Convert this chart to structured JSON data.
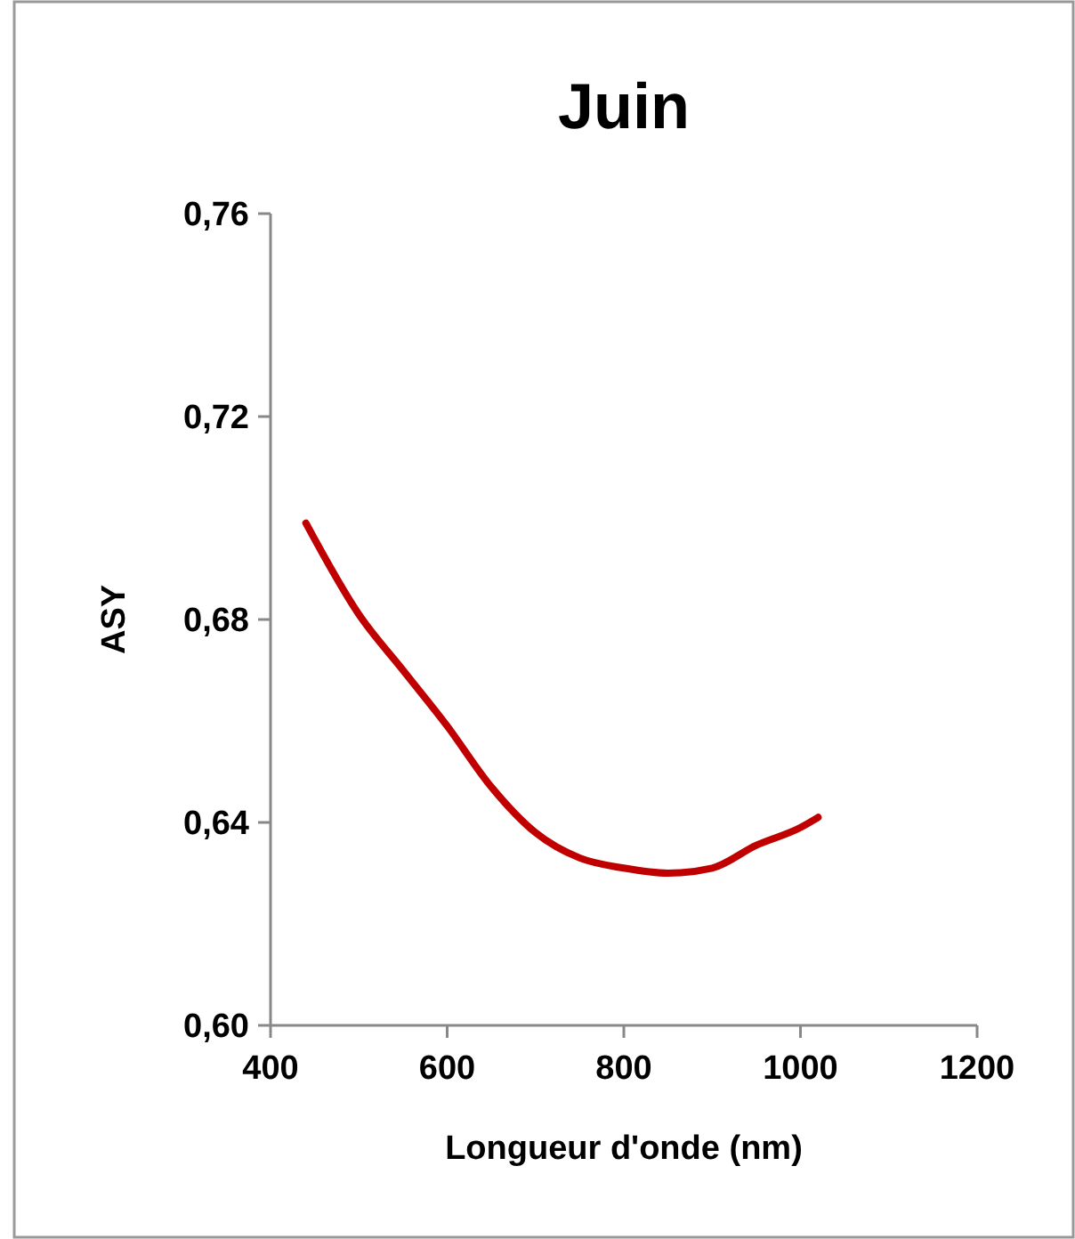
{
  "chart_data": {
    "type": "line",
    "title": "Juin",
    "xlabel": "Longueur d'onde (nm)",
    "ylabel": "ASY",
    "series": [
      {
        "color": "#c00000",
        "x": [
          440,
          500,
          550,
          600,
          650,
          700,
          750,
          800,
          850,
          900,
          950,
          1000,
          1020
        ],
        "values": [
          0.699,
          0.681,
          0.67,
          0.659,
          0.647,
          0.638,
          0.633,
          0.631,
          0.63,
          0.631,
          0.6355,
          0.639,
          0.641
        ]
      }
    ],
    "xlim": [
      400,
      1200
    ],
    "xticks": [
      400,
      600,
      800,
      1000,
      1200
    ],
    "ylim": [
      0.6,
      0.76
    ],
    "yticks": [
      {
        "value": 0.6,
        "label": "0,60"
      },
      {
        "value": 0.64,
        "label": "0,64"
      },
      {
        "value": 0.68,
        "label": "0,68"
      },
      {
        "value": 0.72,
        "label": "0,72"
      },
      {
        "value": 0.76,
        "label": "0,76"
      }
    ],
    "marker": "none",
    "line_style": "solid"
  }
}
